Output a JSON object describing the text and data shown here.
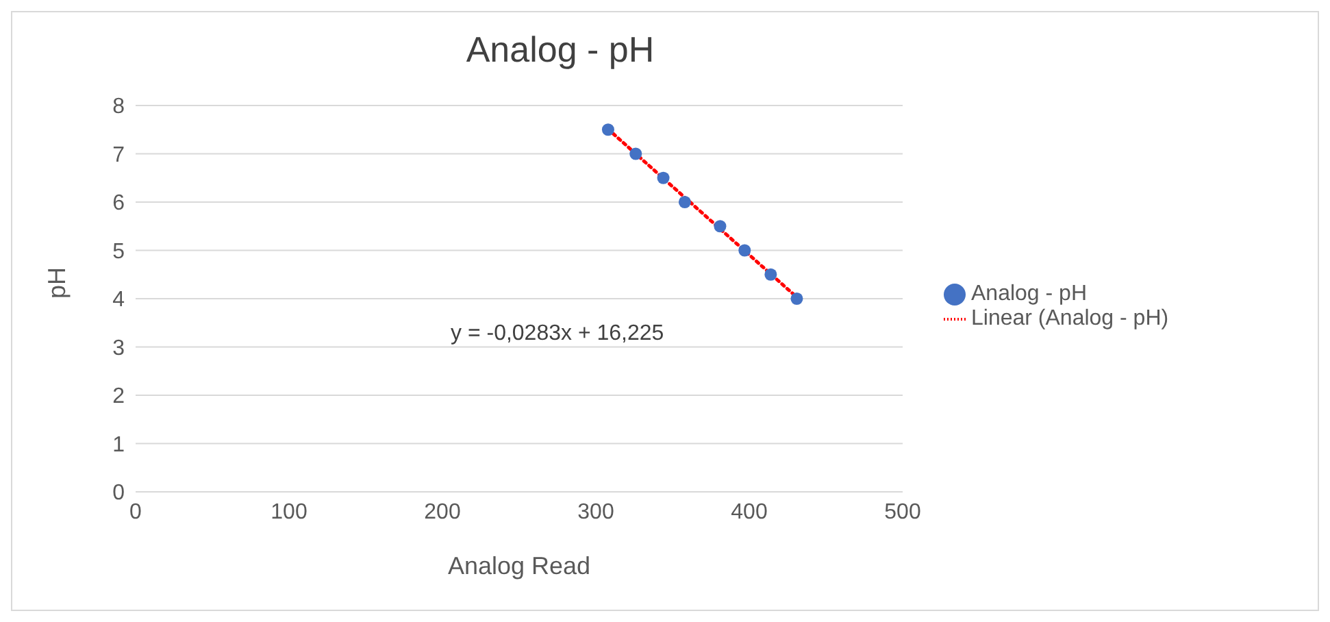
{
  "chart_data": {
    "type": "scatter",
    "title": "Analog - pH",
    "xlabel": "Analog Read",
    "ylabel": "pH",
    "xlim": [
      0,
      500
    ],
    "xticks": [
      0,
      100,
      200,
      300,
      400,
      500
    ],
    "ylim": [
      0,
      8
    ],
    "yticks": [
      0,
      1,
      2,
      3,
      4,
      5,
      6,
      7,
      8
    ],
    "grid": "y",
    "legend": "right",
    "marker": "circle",
    "annotations": [
      "y = -0,0283x + 16,225"
    ],
    "series": [
      {
        "name": "Analog - pH",
        "color": "#4472c4",
        "x": [
          308,
          326,
          344,
          358,
          381,
          397,
          414,
          431
        ],
        "values": [
          7.5,
          7,
          6.5,
          6,
          5.5,
          5,
          4.5,
          4
        ]
      },
      {
        "name": "Linear (Analog - pH)",
        "type": "line",
        "color": "#ff0000",
        "line_style": "dotted",
        "marker": "none",
        "x": [
          308,
          431
        ],
        "values": [
          7.51,
          4.03
        ]
      }
    ]
  }
}
